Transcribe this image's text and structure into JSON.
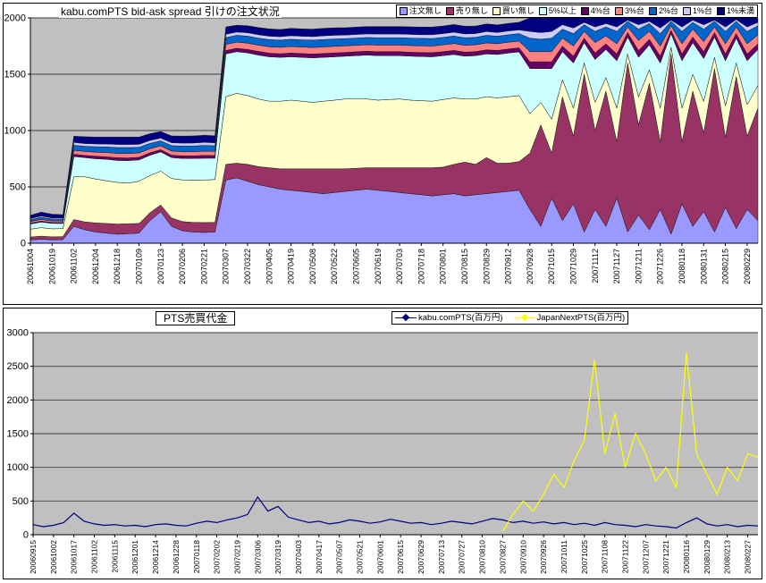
{
  "chart_data": [
    {
      "id": "bid_ask_spread",
      "type": "area",
      "stacked": true,
      "title": "kabu.comPTS bid-ask spread 引けの注文状況",
      "plot_bg": "#C0C0C0",
      "grid": true,
      "legend_position": "top-right",
      "ylim": [
        0,
        2000
      ],
      "ytick_step": 500,
      "y_tick_labels": [
        "0",
        "500",
        "1000",
        "1500",
        "2000"
      ],
      "samples_per_tick": 2,
      "x_tick_labels": [
        "20061004",
        "20061019",
        "20061102",
        "20061204",
        "20061218",
        "20070109",
        "20070123",
        "20070206",
        "20070221",
        "20070307",
        "20070322",
        "20070405",
        "20070419",
        "20070508",
        "20070522",
        "20070605",
        "20070619",
        "20070703",
        "20070718",
        "20070801",
        "20070815",
        "20070829",
        "20070912",
        "20070928",
        "20071015",
        "20071029",
        "20071112",
        "20071127",
        "20071211",
        "20071226",
        "20080118",
        "20080131",
        "20080215",
        "20080229"
      ],
      "series": [
        {
          "name": "注文無し",
          "color": "#9999FF",
          "values": [
            30,
            35,
            30,
            32,
            150,
            120,
            100,
            90,
            80,
            85,
            90,
            200,
            280,
            150,
            110,
            100,
            95,
            100,
            560,
            580,
            550,
            520,
            500,
            480,
            470,
            460,
            450,
            440,
            450,
            460,
            470,
            480,
            470,
            460,
            450,
            440,
            430,
            420,
            430,
            440,
            420,
            430,
            440,
            450,
            460,
            470,
            300,
            150,
            400,
            200,
            350,
            100,
            300,
            150,
            400,
            100,
            250,
            120,
            300,
            80,
            350,
            150,
            280,
            100,
            320,
            130,
            300,
            200
          ]
        },
        {
          "name": "売り無し",
          "color": "#993366",
          "values": [
            25,
            28,
            26,
            27,
            60,
            70,
            80,
            85,
            90,
            88,
            85,
            70,
            60,
            75,
            82,
            85,
            88,
            85,
            140,
            130,
            150,
            160,
            170,
            180,
            190,
            200,
            210,
            220,
            210,
            200,
            195,
            190,
            200,
            210,
            220,
            230,
            240,
            250,
            245,
            260,
            300,
            270,
            320,
            260,
            250,
            255,
            500,
            900,
            400,
            1100,
            600,
            1400,
            700,
            1200,
            500,
            1500,
            800,
            1300,
            600,
            1600,
            550,
            1200,
            700,
            1450,
            620,
            1350,
            650,
            1000
          ]
        },
        {
          "name": "買い無し",
          "color": "#FFFFCC",
          "values": [
            70,
            75,
            72,
            70,
            380,
            400,
            390,
            380,
            370,
            360,
            375,
            330,
            300,
            350,
            370,
            375,
            378,
            380,
            600,
            620,
            610,
            600,
            590,
            600,
            610,
            600,
            590,
            600,
            610,
            620,
            615,
            610,
            600,
            605,
            610,
            600,
            595,
            590,
            600,
            590,
            560,
            580,
            540,
            580,
            590,
            585,
            350,
            200,
            300,
            150,
            250,
            100,
            250,
            120,
            300,
            80,
            250,
            120,
            300,
            60,
            300,
            150,
            280,
            100,
            280,
            120,
            280,
            200
          ]
        },
        {
          "name": "5%以上",
          "color": "#CCFFFF",
          "values": [
            45,
            50,
            48,
            46,
            180,
            170,
            180,
            190,
            195,
            200,
            190,
            180,
            170,
            185,
            190,
            192,
            194,
            190,
            380,
            370,
            380,
            390,
            395,
            390,
            385,
            390,
            395,
            390,
            385,
            380,
            385,
            390,
            395,
            390,
            385,
            390,
            392,
            395,
            390,
            385,
            380,
            385,
            380,
            385,
            388,
            388,
            400,
            300,
            450,
            250,
            400,
            180,
            380,
            250,
            420,
            150,
            350,
            220,
            400,
            120,
            420,
            280,
            380,
            180,
            400,
            220,
            390,
            320
          ]
        },
        {
          "name": "4%台",
          "color": "#660066",
          "values": [
            8,
            9,
            8,
            8,
            20,
            20,
            22,
            22,
            24,
            24,
            23,
            22,
            20,
            22,
            23,
            23,
            24,
            23,
            30,
            30,
            30,
            32,
            32,
            32,
            33,
            33,
            34,
            34,
            34,
            34,
            34,
            34,
            35,
            35,
            35,
            35,
            35,
            36,
            36,
            36,
            36,
            36,
            37,
            36,
            36,
            36,
            60,
            60,
            60,
            50,
            60,
            40,
            60,
            50,
            60,
            40,
            60,
            50,
            60,
            30,
            60,
            50,
            60,
            40,
            60,
            40,
            60,
            50
          ]
        },
        {
          "name": "3%台",
          "color": "#FF8080",
          "values": [
            14,
            15,
            14,
            14,
            35,
            35,
            36,
            38,
            38,
            40,
            38,
            36,
            34,
            36,
            37,
            38,
            38,
            37,
            55,
            55,
            56,
            56,
            57,
            57,
            58,
            58,
            58,
            59,
            59,
            58,
            58,
            58,
            59,
            59,
            59,
            60,
            60,
            60,
            60,
            61,
            61,
            60,
            61,
            60,
            60,
            60,
            90,
            90,
            90,
            70,
            90,
            60,
            90,
            70,
            90,
            50,
            90,
            70,
            90,
            40,
            90,
            70,
            90,
            50,
            90,
            60,
            90,
            80
          ]
        },
        {
          "name": "2%台",
          "color": "#0066CC",
          "values": [
            16,
            18,
            17,
            16,
            45,
            45,
            48,
            50,
            52,
            52,
            50,
            48,
            45,
            48,
            50,
            50,
            51,
            50,
            60,
            60,
            62,
            62,
            63,
            63,
            64,
            64,
            65,
            65,
            65,
            64,
            64,
            64,
            65,
            65,
            65,
            66,
            66,
            66,
            66,
            67,
            67,
            66,
            67,
            66,
            66,
            66,
            120,
            110,
            120,
            80,
            110,
            60,
            100,
            80,
            110,
            50,
            100,
            70,
            110,
            40,
            110,
            60,
            110,
            50,
            110,
            50,
            110,
            80
          ]
        },
        {
          "name": "1%台",
          "color": "#CCCCFF",
          "values": [
            10,
            11,
            10,
            10,
            25,
            25,
            26,
            26,
            28,
            28,
            27,
            26,
            24,
            26,
            27,
            27,
            27,
            27,
            30,
            30,
            30,
            31,
            31,
            31,
            32,
            32,
            32,
            33,
            33,
            32,
            32,
            32,
            33,
            33,
            33,
            33,
            33,
            34,
            34,
            34,
            34,
            34,
            34,
            34,
            34,
            34,
            60,
            60,
            60,
            40,
            50,
            20,
            40,
            30,
            40,
            10,
            40,
            20,
            50,
            10,
            40,
            20,
            40,
            10,
            40,
            15,
            40,
            30
          ]
        },
        {
          "name": "1%未満",
          "color": "#000080",
          "values": [
            30,
            35,
            32,
            30,
            55,
            60,
            60,
            62,
            65,
            65,
            64,
            60,
            58,
            60,
            62,
            62,
            63,
            62,
            65,
            60,
            62,
            63,
            64,
            64,
            65,
            65,
            66,
            66,
            66,
            65,
            65,
            65,
            66,
            66,
            66,
            67,
            67,
            68,
            67,
            68,
            68,
            67,
            68,
            67,
            67,
            67,
            120,
            130,
            120,
            60,
            90,
            40,
            80,
            50,
            80,
            20,
            60,
            30,
            90,
            20,
            80,
            20,
            60,
            20,
            80,
            15,
            80,
            40
          ]
        }
      ]
    },
    {
      "id": "pts_trading_value",
      "type": "line",
      "title": "PTS売買代金",
      "plot_bg": "#C0C0C0",
      "grid": true,
      "legend_position": "top",
      "ylim": [
        0,
        3000
      ],
      "ytick_step": 500,
      "y_tick_labels": [
        "0",
        "500",
        "1000",
        "1500",
        "2000",
        "2500",
        "3000"
      ],
      "samples_per_tick": 2,
      "x_tick_labels": [
        "20060915",
        "20061002",
        "20061017",
        "20061102",
        "20061115",
        "20061201",
        "20061214",
        "20061228",
        "20070118",
        "20070202",
        "20070219",
        "20070306",
        "20070319",
        "20070403",
        "20070417",
        "20070507",
        "20070521",
        "20070601",
        "20070615",
        "20070629",
        "20070713",
        "20070727",
        "20070810",
        "20070827",
        "20070910",
        "20070926",
        "20071011",
        "20071025",
        "20071108",
        "20071122",
        "20071207",
        "20071221",
        "20080116",
        "20080129",
        "20080213",
        "20080227"
      ],
      "series": [
        {
          "name": "kabu.comPTS(百万円)",
          "color": "#000080",
          "marker": "diamond",
          "values": [
            150,
            120,
            140,
            180,
            320,
            200,
            160,
            140,
            150,
            130,
            140,
            120,
            150,
            160,
            140,
            130,
            170,
            200,
            180,
            220,
            250,
            300,
            560,
            350,
            420,
            260,
            220,
            180,
            200,
            160,
            180,
            220,
            200,
            170,
            190,
            230,
            200,
            170,
            180,
            150,
            170,
            200,
            180,
            160,
            200,
            240,
            220,
            180,
            200,
            170,
            190,
            160,
            180,
            150,
            170,
            140,
            180,
            150,
            140,
            120,
            150,
            130,
            120,
            100,
            180,
            250,
            160,
            130,
            150,
            120,
            140,
            130
          ]
        },
        {
          "name": "JapanNextPTS(百万円)",
          "color": "#FFFF00",
          "marker": "diamond",
          "values": [
            null,
            null,
            null,
            null,
            null,
            null,
            null,
            null,
            null,
            null,
            null,
            null,
            null,
            null,
            null,
            null,
            null,
            null,
            null,
            null,
            null,
            null,
            null,
            null,
            null,
            null,
            null,
            null,
            null,
            null,
            null,
            null,
            null,
            null,
            null,
            null,
            null,
            null,
            null,
            null,
            null,
            null,
            null,
            null,
            null,
            null,
            50,
            300,
            500,
            350,
            600,
            900,
            700,
            1100,
            1400,
            2600,
            1200,
            1800,
            1000,
            1500,
            1200,
            800,
            1000,
            700,
            2700,
            1200,
            900,
            600,
            1000,
            800,
            1200,
            1150
          ]
        }
      ]
    }
  ]
}
